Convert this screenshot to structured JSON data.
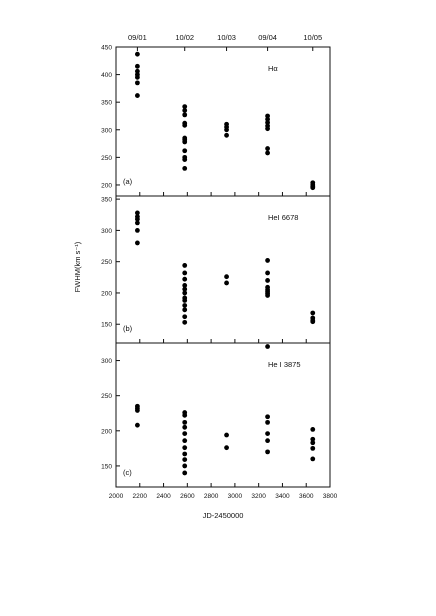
{
  "chart_data": [
    {
      "type": "scatter",
      "panel_label": "(a)",
      "series_label": "Hα",
      "ylim": [
        180,
        450
      ],
      "yticks": [
        200,
        250,
        300,
        350,
        400,
        450
      ],
      "ytick_labels": [
        "200",
        "250",
        "300",
        "350",
        "400",
        "450"
      ],
      "x": [
        2180,
        2180,
        2180,
        2180,
        2180,
        2180,
        2180,
        2578,
        2578,
        2578,
        2578,
        2578,
        2578,
        2578,
        2578,
        2578,
        2578,
        2578,
        2578,
        2930,
        2930,
        2930,
        2930,
        3275,
        3275,
        3275,
        3275,
        3275,
        3275,
        3275,
        3655,
        3655,
        3655,
        3655
      ],
      "y": [
        437,
        415,
        406,
        400,
        395,
        385,
        362,
        342,
        335,
        327,
        312,
        308,
        285,
        282,
        278,
        262,
        250,
        246,
        230,
        310,
        305,
        300,
        290,
        325,
        319,
        313,
        307,
        302,
        266,
        258,
        204,
        200,
        197,
        195
      ]
    },
    {
      "type": "scatter",
      "panel_label": "(b)",
      "series_label": "HeI 6678",
      "ylim": [
        120,
        355
      ],
      "yticks": [
        150,
        200,
        250,
        300,
        350
      ],
      "ytick_labels": [
        "150",
        "200",
        "250",
        "300",
        "350"
      ],
      "x": [
        2180,
        2180,
        2180,
        2180,
        2180,
        2180,
        2578,
        2578,
        2578,
        2578,
        2578,
        2578,
        2578,
        2578,
        2578,
        2578,
        2578,
        2578,
        2930,
        2930,
        3275,
        3275,
        3275,
        3275,
        3275,
        3275,
        3275,
        3275,
        3655,
        3655,
        3655,
        3655
      ],
      "y": [
        328,
        322,
        318,
        312,
        300,
        280,
        244,
        232,
        222,
        212,
        206,
        200,
        192,
        188,
        180,
        173,
        162,
        153,
        226,
        216,
        252,
        232,
        220,
        209,
        205,
        202,
        199,
        196,
        168,
        160,
        156,
        154
      ]
    },
    {
      "type": "scatter",
      "panel_label": "(c)",
      "series_label": "He I 3875",
      "ylim": [
        120,
        325
      ],
      "yticks": [
        150,
        200,
        250,
        300
      ],
      "ytick_labels": [
        "150",
        "200",
        "250",
        "300"
      ],
      "x": [
        2180,
        2180,
        2180,
        2180,
        2578,
        2578,
        2578,
        2578,
        2578,
        2578,
        2578,
        2578,
        2578,
        2578,
        2578,
        2930,
        2930,
        3275,
        3275,
        3275,
        3275,
        3275,
        3275,
        3655,
        3655,
        3655,
        3655,
        3655
      ],
      "y": [
        235,
        232,
        229,
        208,
        226,
        222,
        212,
        205,
        196,
        186,
        176,
        167,
        159,
        150,
        140,
        194,
        176,
        320,
        220,
        212,
        196,
        186,
        170,
        202,
        188,
        183,
        175,
        160
      ]
    }
  ],
  "x_axis": {
    "label": "JD-2450000",
    "xlim": [
      2000,
      3800
    ],
    "ticks": [
      2000,
      2200,
      2400,
      2600,
      2800,
      3000,
      3200,
      3400,
      3600,
      3800
    ],
    "tick_labels": [
      "2000",
      "2200",
      "2400",
      "2600",
      "2800",
      "3000",
      "3200",
      "3400",
      "3600",
      "3800"
    ]
  },
  "y_axis_label": "FWHM(km s⁻¹)",
  "top_dates": {
    "labels": [
      "09/01",
      "10/02",
      "10/03",
      "09/04",
      "10/05"
    ],
    "positions": [
      2180,
      2578,
      2930,
      3275,
      3655
    ]
  }
}
